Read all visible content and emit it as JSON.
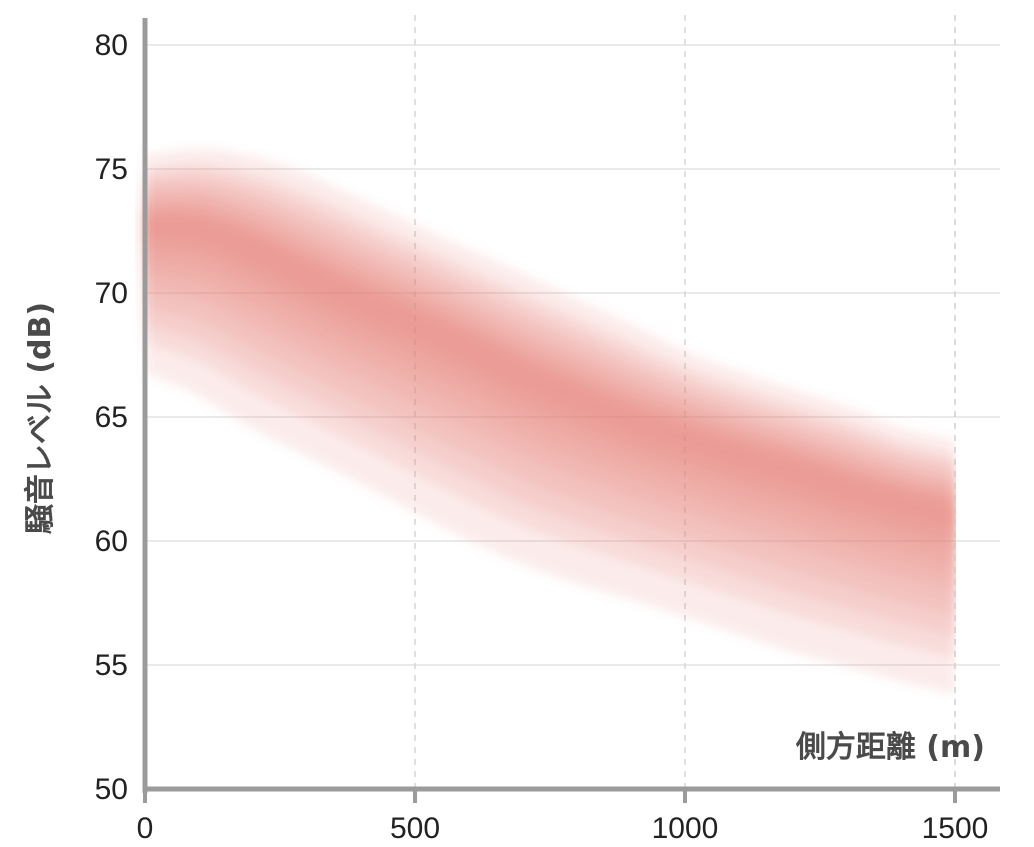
{
  "chart_data": {
    "type": "area",
    "xlabel": "側方距離 (m)",
    "ylabel": "騒音レベル (dB)",
    "xlim": [
      0,
      1500
    ],
    "ylim": [
      50,
      80
    ],
    "x_ticks": [
      "0",
      "500",
      "1000",
      "1500"
    ],
    "y_ticks": [
      "50",
      "55",
      "60",
      "65",
      "70",
      "75",
      "80"
    ],
    "grid": {
      "horizontal": "solid",
      "vertical": "dashed"
    },
    "band_color": "#e07a72",
    "series": [
      {
        "x": [
          0,
          100,
          200,
          300,
          400,
          500,
          600,
          700,
          800,
          900,
          1000,
          1100,
          1200,
          1300,
          1400,
          1500
        ],
        "center": [
          72.8,
          72.7,
          71.9,
          70.8,
          69.8,
          68.9,
          67.9,
          66.8,
          65.9,
          65.0,
          64.3,
          63.6,
          63.0,
          62.3,
          61.7,
          61.2
        ],
        "upper": [
          75.0,
          75.2,
          74.8,
          74.0,
          73.0,
          72.0,
          71.0,
          70.0,
          69.0,
          68.0,
          67.0,
          66.2,
          65.5,
          64.8,
          64.0,
          63.5
        ],
        "lower": [
          68.0,
          67.2,
          66.0,
          64.9,
          63.8,
          62.7,
          61.6,
          60.6,
          59.8,
          59.1,
          58.4,
          57.7,
          57.0,
          56.4,
          55.8,
          55.3
        ]
      }
    ]
  }
}
